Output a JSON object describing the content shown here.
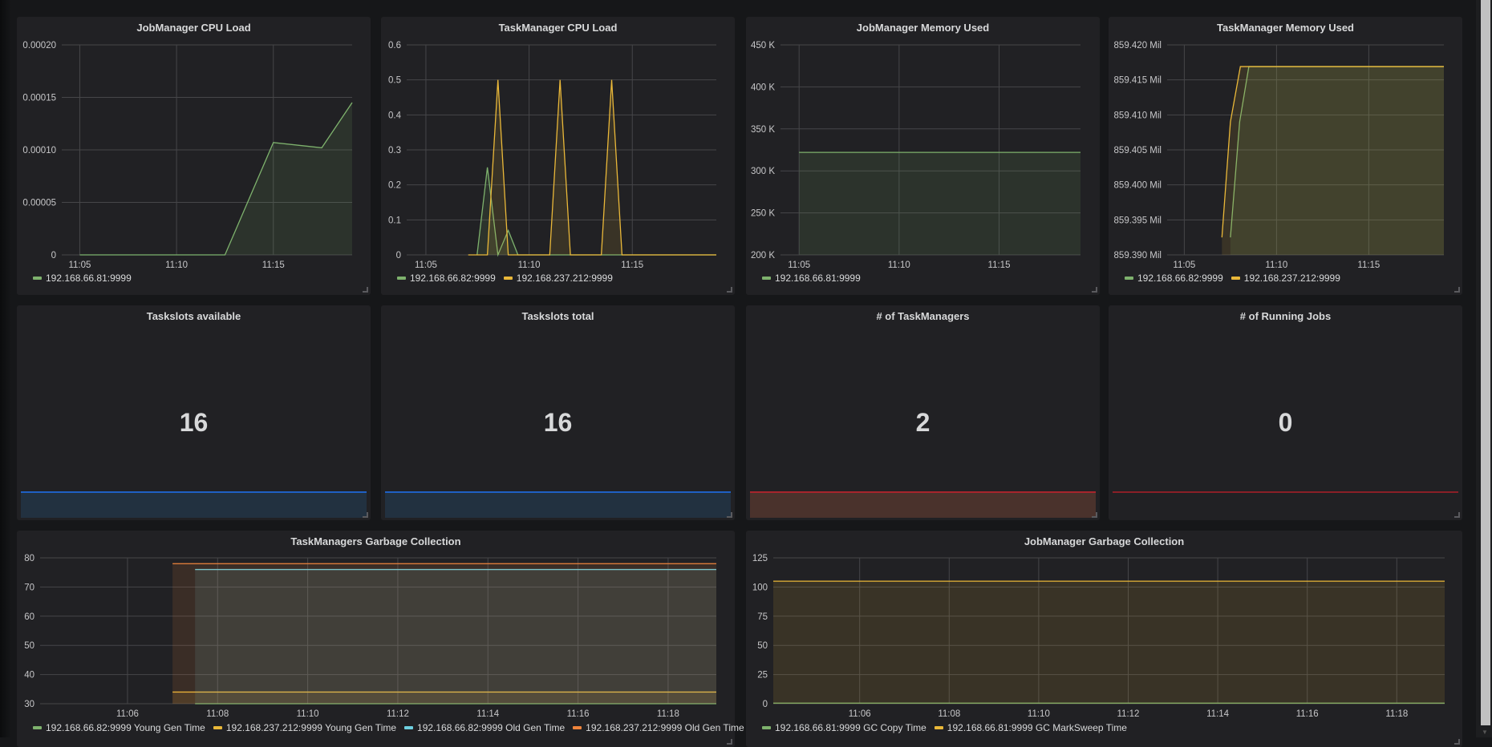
{
  "colors": {
    "green": "#7eb26d",
    "yellow": "#eab839",
    "cyan": "#6ed0e0",
    "orange": "#ef843c",
    "blue": "#1f60c4",
    "red": "#c4162a"
  },
  "charts": [
    {
      "title": "JobManager CPU Load",
      "type": "line",
      "xlim": [
        4.07,
        19.07
      ],
      "xticks": [
        {
          "v": 5,
          "label": "11:05"
        },
        {
          "v": 10,
          "label": "11:10"
        },
        {
          "v": 15,
          "label": "11:15"
        }
      ],
      "ylim": [
        0,
        0.0002
      ],
      "yticks": [
        {
          "v": 0,
          "label": "0"
        },
        {
          "v": 5e-05,
          "label": "0.00005"
        },
        {
          "v": 0.0001,
          "label": "0.00010"
        },
        {
          "v": 0.00015,
          "label": "0.00015"
        },
        {
          "v": 0.0002,
          "label": "0.00020"
        }
      ],
      "series": [
        {
          "name": "192.168.66.81:9999",
          "color": "#7eb26d",
          "points": [
            [
              5,
              0
            ],
            [
              12.5,
              0
            ],
            [
              15,
              0.000107
            ],
            [
              17.5,
              0.000102
            ],
            [
              19.07,
              0.000145
            ]
          ]
        }
      ]
    },
    {
      "title": "TaskManager CPU Load",
      "type": "line",
      "xlim": [
        4.07,
        19.07
      ],
      "xticks": [
        {
          "v": 5,
          "label": "11:05"
        },
        {
          "v": 10,
          "label": "11:10"
        },
        {
          "v": 15,
          "label": "11:15"
        }
      ],
      "ylim": [
        0,
        0.6
      ],
      "yticks": [
        {
          "v": 0,
          "label": "0"
        },
        {
          "v": 0.1,
          "label": "0.1"
        },
        {
          "v": 0.2,
          "label": "0.2"
        },
        {
          "v": 0.3,
          "label": "0.3"
        },
        {
          "v": 0.4,
          "label": "0.4"
        },
        {
          "v": 0.5,
          "label": "0.5"
        },
        {
          "v": 0.6,
          "label": "0.6"
        }
      ],
      "series": [
        {
          "name": "192.168.66.82:9999",
          "color": "#7eb26d",
          "points": [
            [
              7.48,
              0
            ],
            [
              7.98,
              0.25
            ],
            [
              8.49,
              0
            ],
            [
              8.99,
              0.07
            ],
            [
              9.46,
              0
            ],
            [
              19.07,
              0
            ]
          ]
        },
        {
          "name": "192.168.237.212:9999",
          "color": "#eab839",
          "points": [
            [
              7.05,
              0
            ],
            [
              7.98,
              0
            ],
            [
              8.49,
              0.5
            ],
            [
              8.99,
              0
            ],
            [
              11.0,
              0
            ],
            [
              11.5,
              0.5
            ],
            [
              12.0,
              0
            ],
            [
              13.5,
              0
            ],
            [
              14.0,
              0.5
            ],
            [
              14.5,
              0
            ],
            [
              19.07,
              0
            ]
          ]
        }
      ]
    },
    {
      "title": "JobManager Memory Used",
      "type": "line",
      "xlim": [
        4.07,
        19.07
      ],
      "xticks": [
        {
          "v": 5,
          "label": "11:05"
        },
        {
          "v": 10,
          "label": "11:10"
        },
        {
          "v": 15,
          "label": "11:15"
        }
      ],
      "ylim": [
        200000,
        450000
      ],
      "yticks": [
        {
          "v": 200000,
          "label": "200 K"
        },
        {
          "v": 250000,
          "label": "250 K"
        },
        {
          "v": 300000,
          "label": "300 K"
        },
        {
          "v": 350000,
          "label": "350 K"
        },
        {
          "v": 400000,
          "label": "400 K"
        },
        {
          "v": 450000,
          "label": "450 K"
        }
      ],
      "series": [
        {
          "name": "192.168.66.81:9999",
          "color": "#7eb26d",
          "points": [
            [
              5,
              322000
            ],
            [
              19.07,
              322000
            ]
          ]
        }
      ]
    },
    {
      "title": "TaskManager Memory Used",
      "type": "line",
      "xlim": [
        4.07,
        19.07
      ],
      "xticks": [
        {
          "v": 5,
          "label": "11:05"
        },
        {
          "v": 10,
          "label": "11:10"
        },
        {
          "v": 15,
          "label": "11:15"
        }
      ],
      "ylim": [
        859.39,
        859.42
      ],
      "yticks": [
        {
          "v": 859.39,
          "label": "859.390 Mil"
        },
        {
          "v": 859.395,
          "label": "859.395 Mil"
        },
        {
          "v": 859.4,
          "label": "859.400 Mil"
        },
        {
          "v": 859.405,
          "label": "859.405 Mil"
        },
        {
          "v": 859.41,
          "label": "859.410 Mil"
        },
        {
          "v": 859.415,
          "label": "859.415 Mil"
        },
        {
          "v": 859.42,
          "label": "859.420 Mil"
        }
      ],
      "series": [
        {
          "name": "192.168.66.82:9999",
          "color": "#7eb26d",
          "points": [
            [
              7.5,
              859.3925
            ],
            [
              8.0,
              859.409
            ],
            [
              8.5,
              859.4169
            ],
            [
              19.07,
              859.4169
            ]
          ]
        },
        {
          "name": "192.168.237.212:9999",
          "color": "#eab839",
          "points": [
            [
              7.04,
              859.3925
            ],
            [
              7.5,
              859.409
            ],
            [
              8.04,
              859.4169
            ],
            [
              19.07,
              859.4169
            ]
          ]
        }
      ]
    },
    {
      "title": "TaskManagers Garbage Collection",
      "type": "line",
      "xlim": [
        4.06,
        19.07
      ],
      "xticks": [
        {
          "v": 6,
          "label": "11:06"
        },
        {
          "v": 8,
          "label": "11:08"
        },
        {
          "v": 10,
          "label": "11:10"
        },
        {
          "v": 12,
          "label": "11:12"
        },
        {
          "v": 14,
          "label": "11:14"
        },
        {
          "v": 16,
          "label": "11:16"
        },
        {
          "v": 18,
          "label": "11:18"
        }
      ],
      "ylim": [
        30,
        80
      ],
      "yticks": [
        {
          "v": 30,
          "label": "30"
        },
        {
          "v": 40,
          "label": "40"
        },
        {
          "v": 50,
          "label": "50"
        },
        {
          "v": 60,
          "label": "60"
        },
        {
          "v": 70,
          "label": "70"
        },
        {
          "v": 80,
          "label": "80"
        }
      ],
      "series": [
        {
          "name": "192.168.66.82:9999 Young Gen Time",
          "color": "#7eb26d",
          "points": [
            [
              7.5,
              30
            ],
            [
              19.07,
              30
            ]
          ]
        },
        {
          "name": "192.168.237.212:9999 Young Gen Time",
          "color": "#eab839",
          "points": [
            [
              7.0,
              34
            ],
            [
              19.07,
              34
            ]
          ]
        },
        {
          "name": "192.168.66.82:9999 Old Gen Time",
          "color": "#6ed0e0",
          "points": [
            [
              7.5,
              76
            ],
            [
              19.07,
              76
            ]
          ]
        },
        {
          "name": "192.168.237.212:9999 Old Gen Time",
          "color": "#ef843c",
          "points": [
            [
              7.0,
              78
            ],
            [
              19.07,
              78
            ]
          ]
        }
      ]
    },
    {
      "title": "JobManager Garbage Collection",
      "type": "line",
      "xlim": [
        4.07,
        19.07
      ],
      "xticks": [
        {
          "v": 6,
          "label": "11:06"
        },
        {
          "v": 8,
          "label": "11:08"
        },
        {
          "v": 10,
          "label": "11:10"
        },
        {
          "v": 12,
          "label": "11:12"
        },
        {
          "v": 14,
          "label": "11:14"
        },
        {
          "v": 16,
          "label": "11:16"
        },
        {
          "v": 18,
          "label": "11:18"
        }
      ],
      "ylim": [
        0,
        125
      ],
      "yticks": [
        {
          "v": 0,
          "label": "0"
        },
        {
          "v": 25,
          "label": "25"
        },
        {
          "v": 50,
          "label": "50"
        },
        {
          "v": 75,
          "label": "75"
        },
        {
          "v": 100,
          "label": "100"
        },
        {
          "v": 125,
          "label": "125"
        }
      ],
      "series": [
        {
          "name": "192.168.66.81:9999 GC Copy Time",
          "color": "#7eb26d",
          "points": [
            [
              4.07,
              0.5
            ],
            [
              19.07,
              0.5
            ]
          ]
        },
        {
          "name": "192.168.66.81:9999 GC MarkSweep Time",
          "color": "#eab839",
          "points": [
            [
              4.07,
              105
            ],
            [
              19.07,
              105
            ]
          ]
        }
      ]
    }
  ],
  "stats": [
    {
      "title": "Taskslots available",
      "value": "16",
      "spark": "blue"
    },
    {
      "title": "Taskslots total",
      "value": "16",
      "spark": "blue"
    },
    {
      "title": "# of TaskManagers",
      "value": "2",
      "spark": "red"
    },
    {
      "title": "# of Running Jobs",
      "value": "0",
      "spark": "red-line"
    }
  ]
}
